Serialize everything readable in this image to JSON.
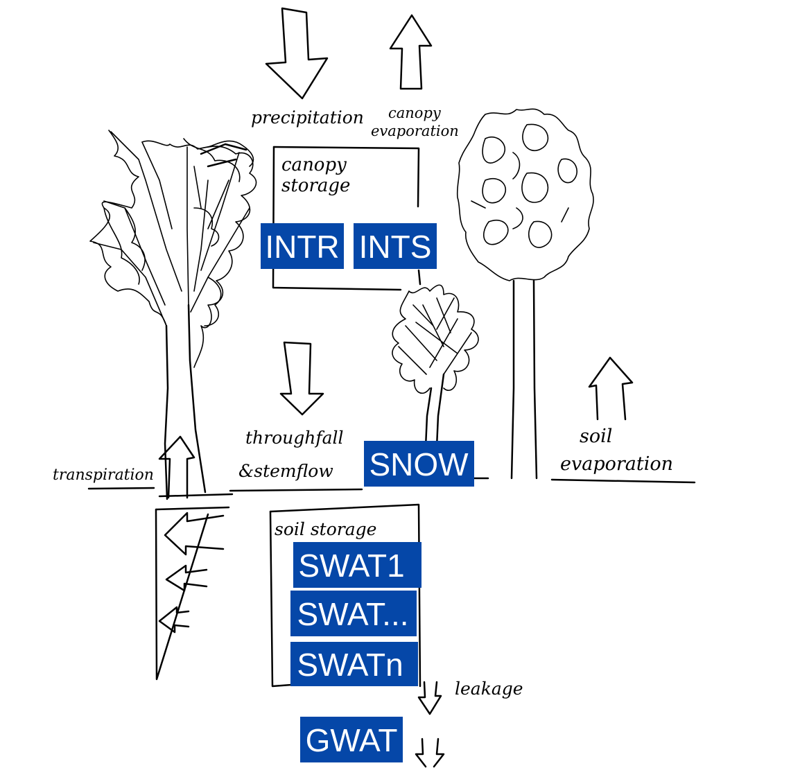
{
  "labels": {
    "precipitation": "precipitation",
    "canopy_evap_1": "canopy",
    "canopy_evap_2": "evaporation",
    "canopy_storage_1": "canopy",
    "canopy_storage_2": "storage",
    "throughfall_1": "throughfall",
    "throughfall_2": "&stemflow",
    "soil_evap_1": "soil",
    "soil_evap_2": "evaporation",
    "transpiration": "transpiration",
    "soil_storage": "soil storage",
    "leakage": "leakage"
  },
  "variables": {
    "intr": "INTR",
    "ints": "INTS",
    "snow": "SNOW",
    "swat1": "SWAT1",
    "swat_mid": "SWAT...",
    "swatn": "SWATn",
    "gwat": "GWAT"
  },
  "colors": {
    "variable_box": "#0547a8",
    "variable_text": "#ffffff",
    "ink": "#000000"
  }
}
